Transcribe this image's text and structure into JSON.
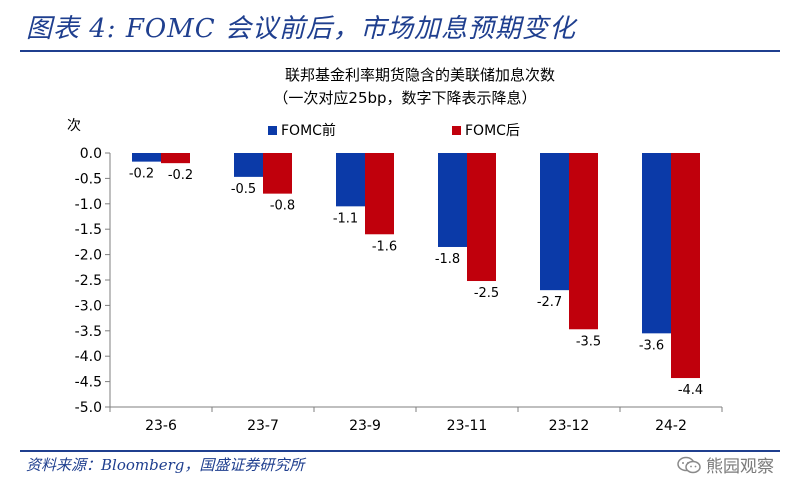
{
  "figure": {
    "title": "图表 4:  FOMC 会议前后，市场加息预期变化",
    "source": "资料来源：Bloomberg，国盛证券研究所",
    "watermark": "熊园观察"
  },
  "chart_data": {
    "type": "bar",
    "title": "联邦基金利率期货隐含的美联储加息次数",
    "subtitle": "（一次对应25bp，数字下降表示降息）",
    "ylabel": "次",
    "xlabel": "",
    "ylim": [
      -5.0,
      0.0
    ],
    "yticks": [
      "0.0",
      "-0.5",
      "-1.0",
      "-1.5",
      "-2.0",
      "-2.5",
      "-3.0",
      "-3.5",
      "-4.0",
      "-4.5",
      "-5.0"
    ],
    "categories": [
      "23-6",
      "23-7",
      "23-9",
      "23-11",
      "23-12",
      "24-2"
    ],
    "series": [
      {
        "name": "FOMC前",
        "color": "#0b3aa8",
        "values": [
          -0.17,
          -0.47,
          -1.05,
          -1.85,
          -2.7,
          -3.55
        ],
        "labels": [
          "-0.2",
          "-0.5",
          "-1.1",
          "-1.8",
          "-2.7",
          "-3.6"
        ]
      },
      {
        "name": "FOMC后",
        "color": "#c0000c",
        "values": [
          -0.2,
          -0.8,
          -1.6,
          -2.52,
          -3.47,
          -4.43
        ],
        "labels": [
          "-0.2",
          "-0.8",
          "-1.6",
          "-2.5",
          "-3.5",
          "-4.4"
        ]
      }
    ],
    "legend": "top",
    "grid": false
  }
}
